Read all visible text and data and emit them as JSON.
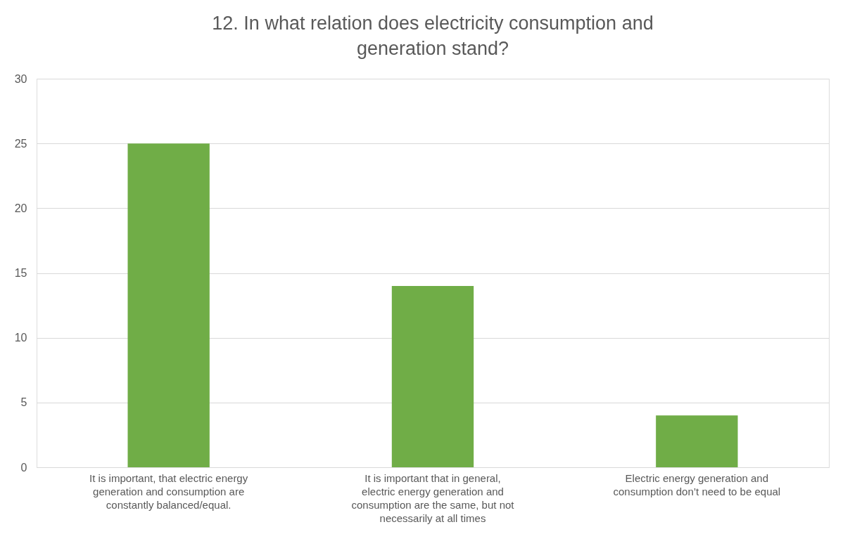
{
  "chart_data": {
    "type": "bar",
    "title": "12. In what relation does electricity consumption and generation stand?",
    "categories": [
      "It is important, that electric energy generation and consumption are constantly balanced/equal.",
      "It is important that in general, electric energy generation and consumption are the same, but not necessarily at all times",
      "Electric energy generation and consumption don’t need to be equal"
    ],
    "values": [
      25,
      14,
      4
    ],
    "color": "#70ad47",
    "ylim": [
      0,
      30
    ],
    "yticks": [
      0,
      5,
      10,
      15,
      20,
      25,
      30
    ],
    "grid": "y"
  }
}
